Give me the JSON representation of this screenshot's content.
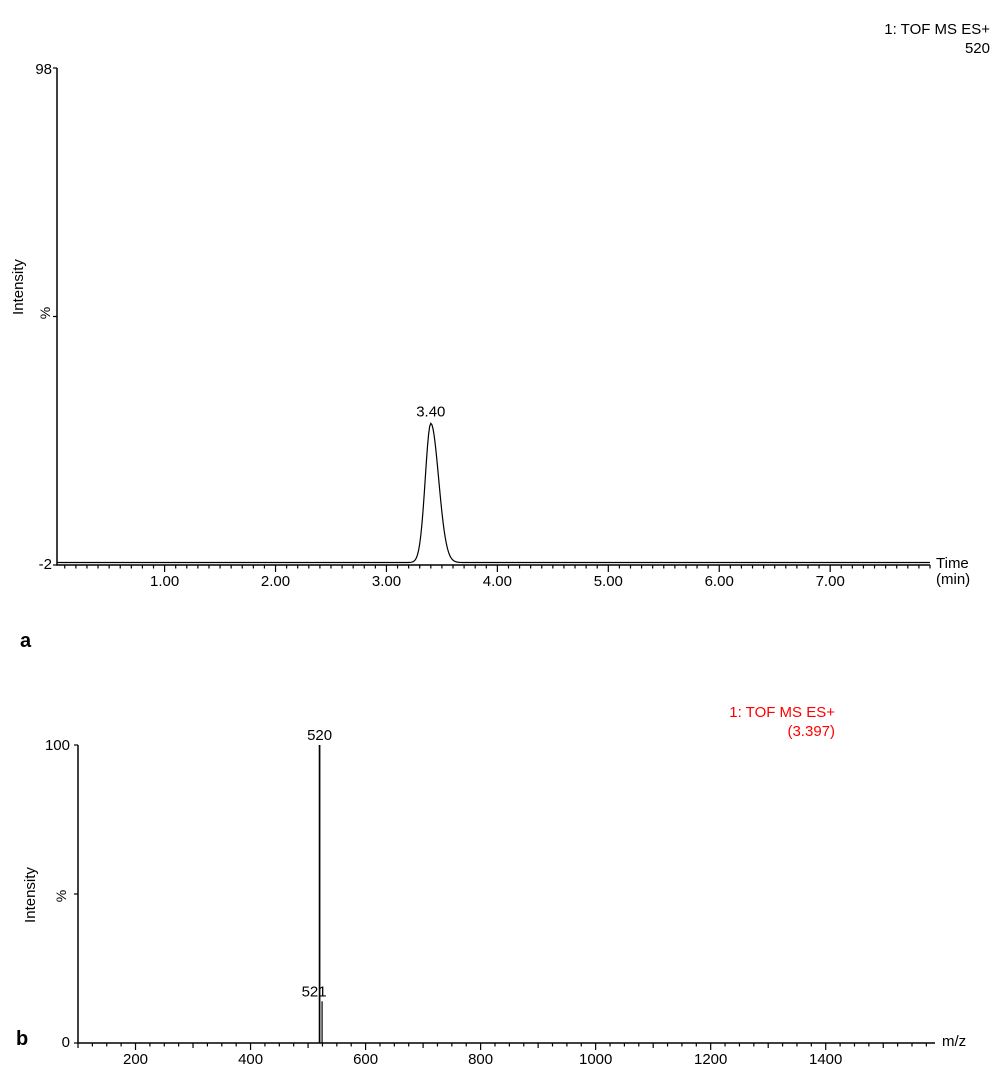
{
  "page": {
    "background": "#ffffff"
  },
  "panel_a": {
    "letter": "a",
    "header": [
      "1: TOF MS ES+",
      "520"
    ],
    "header_color": "#000000",
    "y_axis": {
      "label": "Intensity",
      "unit": "%",
      "top_value": "98",
      "bottom_value": "-2"
    },
    "x_axis": {
      "label_line1": "Time",
      "label_line2": "(min)"
    },
    "peak_annotation": "3.40"
  },
  "panel_b": {
    "letter": "b",
    "header": [
      "1: TOF MS ES+",
      "(3.397)"
    ],
    "header_color": "#FF0000",
    "y_axis": {
      "label": "Intensity",
      "unit": "%",
      "top_value": "100",
      "bottom_value": "0"
    },
    "x_axis": {
      "label": "m/z"
    },
    "peak_annotations": [
      "520",
      "521"
    ]
  },
  "chart_data": [
    {
      "type": "line",
      "subtype": "extracted-ion-chromatogram",
      "title": "1: TOF MS ES+ 520",
      "xlabel": "Time (min)",
      "ylabel": "Intensity (%)",
      "xlim": [
        0.03,
        7.9
      ],
      "ylim": [
        -2,
        98
      ],
      "x_major_ticks": [
        1,
        2,
        3,
        4,
        5,
        6,
        7
      ],
      "x_tick_labels": [
        "1.00",
        "2.00",
        "3.00",
        "4.00",
        "5.00",
        "6.00",
        "7.00"
      ],
      "x_minor_step": 0.1,
      "baseline": -1.5,
      "grid": false,
      "peaks": [
        {
          "time": 3.4,
          "height": 26.5,
          "sigma_left": 0.05,
          "sigma_right": 0.07,
          "label": "3.40"
        }
      ]
    },
    {
      "type": "bar",
      "subtype": "mass-spectrum",
      "title": "1: TOF MS ES+ (3.397)",
      "xlabel": "m/z",
      "ylabel": "Intensity (%)",
      "xlim": [
        100,
        1590
      ],
      "ylim": [
        0,
        100
      ],
      "x_major_ticks": [
        200,
        400,
        600,
        800,
        1000,
        1200,
        1400
      ],
      "x_tick_labels": [
        "200",
        "400",
        "600",
        "800",
        "1000",
        "1200",
        "1400"
      ],
      "x_minor_step": 25,
      "x_medium_step": 100,
      "grid": false,
      "peaks": [
        {
          "mz": 520,
          "intensity": 100,
          "label": "520"
        },
        {
          "mz": 521,
          "intensity": 14,
          "label": "521"
        }
      ]
    }
  ]
}
